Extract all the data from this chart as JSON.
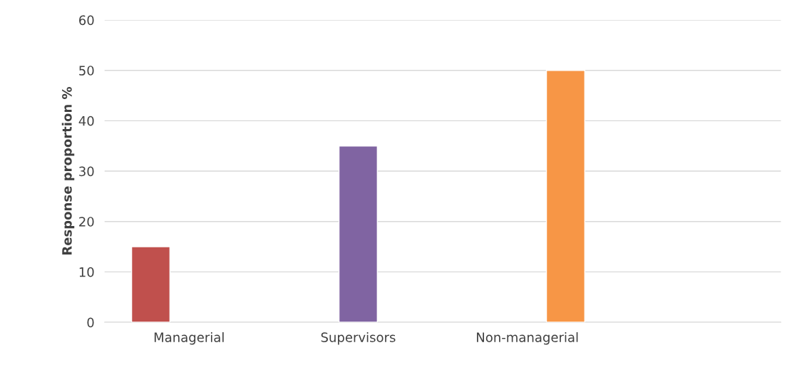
{
  "chart_data": {
    "type": "bar",
    "ylabel": "Response proportion %",
    "categories": [
      "Managerial",
      "Supervisors",
      "Non-managerial",
      null
    ],
    "series": [
      {
        "color": "#c0504d",
        "values": [
          15,
          null,
          null,
          null
        ]
      },
      {
        "color": "#8064a2",
        "values": [
          null,
          35,
          null,
          null
        ]
      },
      {
        "color": "#f79646",
        "values": [
          null,
          null,
          50,
          null
        ]
      }
    ],
    "ylim": [
      0,
      60
    ],
    "yticks": [
      0,
      10,
      20,
      30,
      40,
      50,
      60
    ],
    "grid": "y"
  }
}
